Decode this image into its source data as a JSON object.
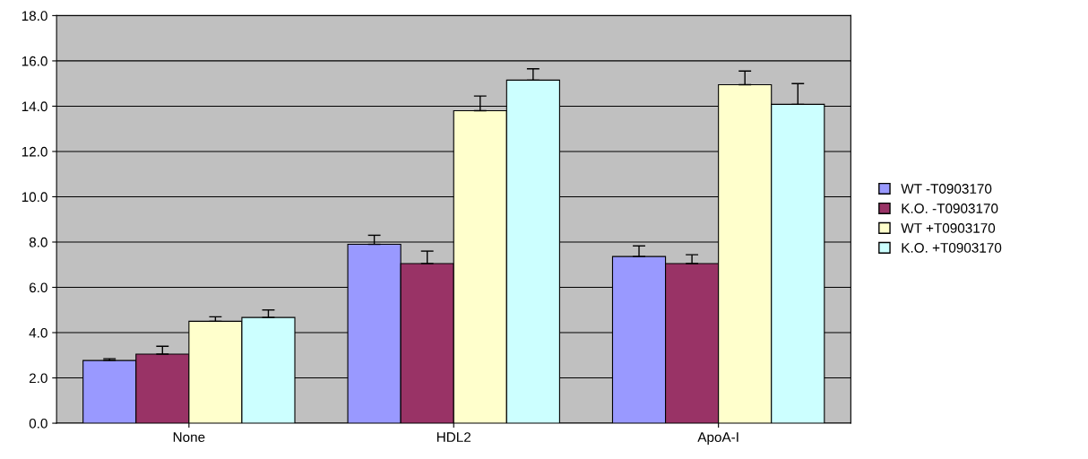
{
  "chart_data": {
    "type": "bar",
    "categories": [
      "None",
      "HDL2",
      "ApoA-I"
    ],
    "series": [
      {
        "name": "WT -T0903170",
        "color": "#9999ff",
        "values": [
          2.77,
          7.9,
          7.36
        ],
        "errors": [
          [
            2.77,
            2.85
          ],
          [
            7.9,
            8.3
          ],
          [
            7.36,
            7.83
          ]
        ]
      },
      {
        "name": "K.O. -T0903170",
        "color": "#993366",
        "values": [
          3.05,
          7.05,
          7.05
        ],
        "errors": [
          [
            3.05,
            3.4
          ],
          [
            7.05,
            7.6
          ],
          [
            7.05,
            7.44
          ]
        ]
      },
      {
        "name": "WT +T0903170",
        "color": "#ffffcc",
        "values": [
          4.5,
          13.8,
          14.95
        ],
        "errors": [
          [
            4.5,
            4.7
          ],
          [
            13.8,
            14.45
          ],
          [
            14.95,
            15.55
          ]
        ]
      },
      {
        "name": "K.O. +T0903170",
        "color": "#ccffff",
        "values": [
          4.67,
          15.15,
          14.08
        ],
        "errors": [
          [
            4.67,
            5.0
          ],
          [
            15.15,
            15.65
          ],
          [
            14.08,
            15.0
          ]
        ]
      }
    ],
    "ylim": [
      0,
      18
    ],
    "yticks": [
      {
        "value": 0,
        "label": "0.0"
      },
      {
        "value": 2,
        "label": "2.0"
      },
      {
        "value": 4,
        "label": "4.0"
      },
      {
        "value": 6,
        "label": "6.0"
      },
      {
        "value": 8,
        "label": "8.0"
      },
      {
        "value": 10,
        "label": "10.0"
      },
      {
        "value": 12,
        "label": "12.0"
      },
      {
        "value": 14,
        "label": "14.0"
      },
      {
        "value": 16,
        "label": "16.0"
      },
      {
        "value": 18,
        "label": "18.0"
      }
    ],
    "grid": "y",
    "legend": "right"
  }
}
